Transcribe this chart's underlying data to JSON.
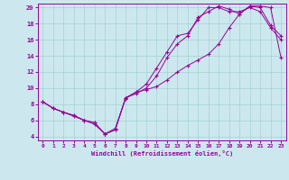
{
  "xlabel": "Windchill (Refroidissement éolien,°C)",
  "bg_color": "#cce8ee",
  "line_color": "#990099",
  "grid_color": "#99cccc",
  "xlim": [
    -0.5,
    23.5
  ],
  "ylim": [
    3.5,
    20.5
  ],
  "xticks": [
    0,
    1,
    2,
    3,
    4,
    5,
    6,
    7,
    8,
    9,
    10,
    11,
    12,
    13,
    14,
    15,
    16,
    17,
    18,
    19,
    20,
    21,
    22,
    23
  ],
  "yticks": [
    4,
    6,
    8,
    10,
    12,
    14,
    16,
    18,
    20
  ],
  "line1_x": [
    0,
    1,
    2,
    3,
    4,
    5,
    6,
    7,
    8,
    9,
    10,
    11,
    12,
    13,
    14,
    15,
    16,
    17,
    18,
    19,
    20,
    21,
    22,
    23
  ],
  "line1_y": [
    8.3,
    7.5,
    7.0,
    6.6,
    6.0,
    5.7,
    4.3,
    5.0,
    8.7,
    9.5,
    10.5,
    12.5,
    14.5,
    16.5,
    16.8,
    18.5,
    20.0,
    20.0,
    19.5,
    19.5,
    20.0,
    19.5,
    17.5,
    16.0
  ],
  "line2_x": [
    0,
    1,
    2,
    3,
    4,
    5,
    6,
    7,
    8,
    9,
    10,
    11,
    12,
    13,
    14,
    15,
    16,
    17,
    18,
    19,
    20,
    21,
    22,
    23
  ],
  "line2_y": [
    8.3,
    7.5,
    7.0,
    6.6,
    6.0,
    5.7,
    4.3,
    4.8,
    8.8,
    9.3,
    10.0,
    11.5,
    13.8,
    15.5,
    16.5,
    18.8,
    19.5,
    20.2,
    19.8,
    19.2,
    20.2,
    20.0,
    17.8,
    16.5
  ],
  "line3_x": [
    0,
    1,
    2,
    3,
    4,
    5,
    6,
    7,
    8,
    9,
    10,
    11,
    12,
    13,
    14,
    15,
    16,
    17,
    18,
    19,
    20,
    21,
    22,
    23
  ],
  "line3_y": [
    8.3,
    7.5,
    7.0,
    6.5,
    6.0,
    5.5,
    4.3,
    4.8,
    8.8,
    9.5,
    9.8,
    10.2,
    11.0,
    12.0,
    12.8,
    13.5,
    14.2,
    15.5,
    17.5,
    19.2,
    20.2,
    20.2,
    20.0,
    13.8
  ]
}
